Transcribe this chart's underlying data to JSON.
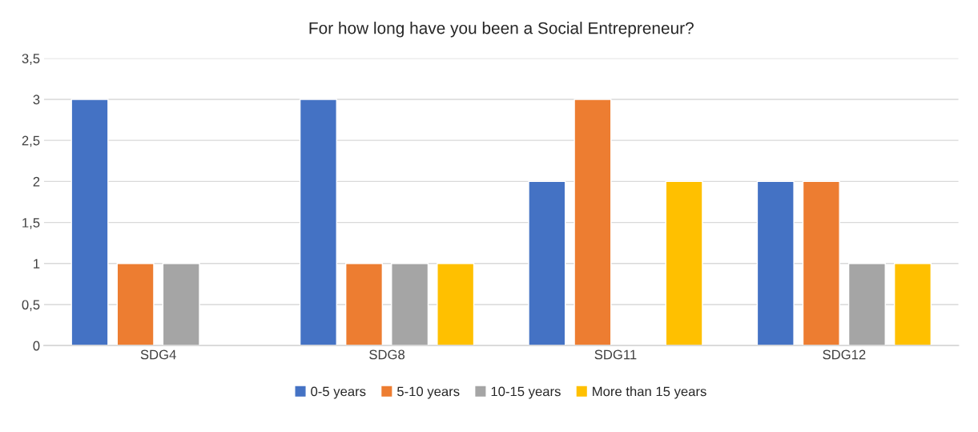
{
  "chart_data": {
    "type": "bar",
    "title": "For how long have you been a Social Entrepreneur?",
    "categories": [
      "SDG4",
      "SDG8",
      "SDG11",
      "SDG12"
    ],
    "series": [
      {
        "name": "0-5 years",
        "color": "#4472c4",
        "values": [
          3,
          3,
          2,
          2
        ]
      },
      {
        "name": "5-10 years",
        "color": "#ed7d31",
        "values": [
          1,
          1,
          3,
          2
        ]
      },
      {
        "name": "10-15 years",
        "color": "#a5a5a5",
        "values": [
          1,
          1,
          null,
          1
        ]
      },
      {
        "name": "More than 15 years",
        "color": "#ffc000",
        "values": [
          null,
          1,
          2,
          1
        ]
      }
    ],
    "ylim": [
      0,
      3.5
    ],
    "yticks": [
      0,
      {
        "value": 0.5,
        "label": "0,5"
      },
      1,
      {
        "value": 1.5,
        "label": "1,5"
      },
      2,
      {
        "value": 2.5,
        "label": "2,5"
      },
      3,
      {
        "value": 3.5,
        "label": "3,5"
      }
    ],
    "grid": "y",
    "legend": "bottom"
  }
}
